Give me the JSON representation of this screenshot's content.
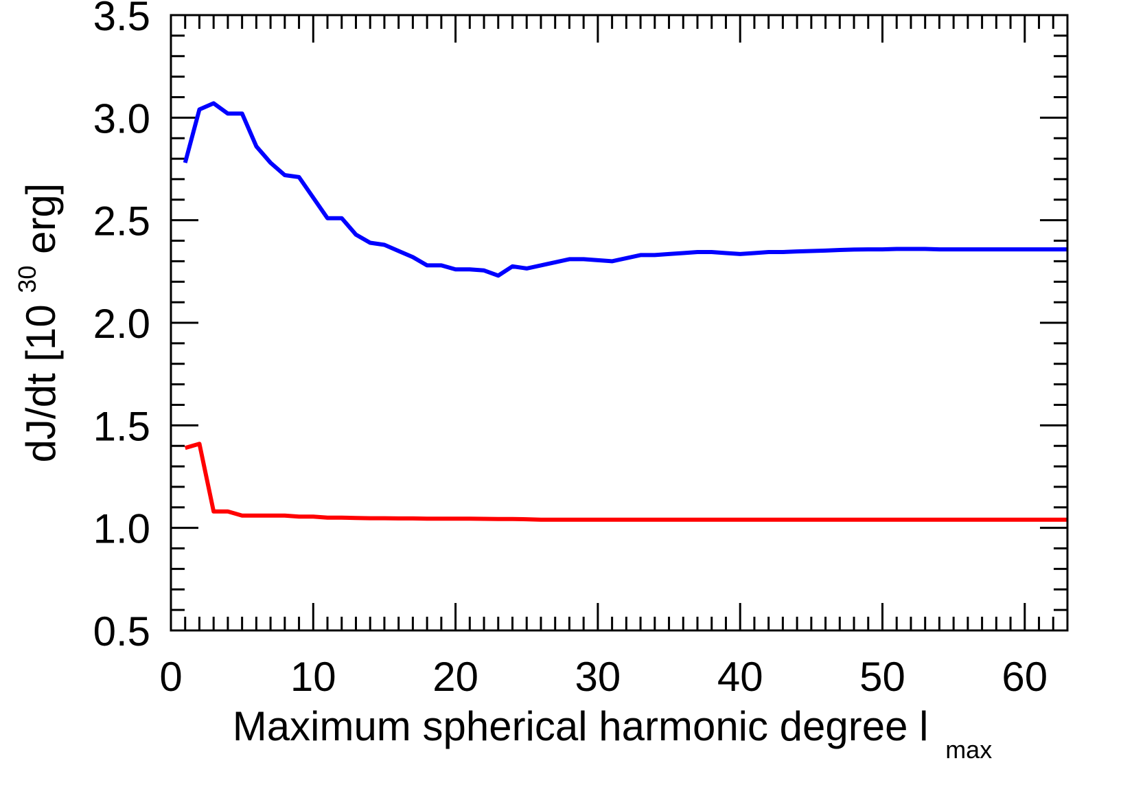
{
  "chart_data": {
    "type": "line",
    "xlabel": "Maximum spherical harmonic degree l",
    "xlabel_subscript": "max",
    "ylabel_prefix": "dJ/dt [10",
    "ylabel_superscript": "30",
    "ylabel_suffix": " erg]",
    "xlim": [
      0,
      63
    ],
    "ylim": [
      0.5,
      3.5
    ],
    "x_ticks": [
      0,
      10,
      20,
      30,
      40,
      50,
      60
    ],
    "x_tick_labels": [
      "0",
      "10",
      "20",
      "30",
      "40",
      "50",
      "60"
    ],
    "y_ticks": [
      0.5,
      1.0,
      1.5,
      2.0,
      2.5,
      3.0,
      3.5
    ],
    "y_tick_labels": [
      "0.5",
      "1.0",
      "1.5",
      "2.0",
      "2.5",
      "3.0",
      "3.5"
    ],
    "grid": false,
    "series": [
      {
        "color": "#0000ff",
        "x": [
          1,
          2,
          3,
          4,
          5,
          6,
          7,
          8,
          9,
          10,
          11,
          12,
          13,
          14,
          15,
          16,
          17,
          18,
          19,
          20,
          21,
          22,
          23,
          24,
          25,
          26,
          27,
          28,
          29,
          30,
          31,
          32,
          33,
          34,
          35,
          36,
          37,
          38,
          39,
          40,
          41,
          42,
          43,
          44,
          45,
          46,
          47,
          48,
          49,
          50,
          51,
          52,
          53,
          54,
          55,
          56,
          57,
          58,
          59,
          60,
          61,
          62,
          63
        ],
        "values": [
          2.78,
          3.04,
          3.07,
          3.02,
          3.02,
          2.86,
          2.78,
          2.72,
          2.71,
          2.61,
          2.51,
          2.51,
          2.43,
          2.39,
          2.38,
          2.35,
          2.32,
          2.28,
          2.28,
          2.26,
          2.26,
          2.255,
          2.23,
          2.275,
          2.265,
          2.28,
          2.295,
          2.31,
          2.31,
          2.305,
          2.3,
          2.315,
          2.33,
          2.33,
          2.335,
          2.34,
          2.345,
          2.345,
          2.34,
          2.335,
          2.34,
          2.345,
          2.345,
          2.348,
          2.35,
          2.352,
          2.355,
          2.357,
          2.358,
          2.358,
          2.36,
          2.36,
          2.36,
          2.358,
          2.358,
          2.358,
          2.358,
          2.358,
          2.358,
          2.358,
          2.358,
          2.358,
          2.358
        ]
      },
      {
        "color": "#ff0000",
        "x": [
          1,
          2,
          3,
          4,
          5,
          6,
          7,
          8,
          9,
          10,
          11,
          12,
          13,
          14,
          15,
          16,
          17,
          18,
          19,
          20,
          21,
          22,
          23,
          24,
          25,
          26,
          27,
          28,
          29,
          30,
          31,
          32,
          33,
          34,
          35,
          36,
          37,
          38,
          39,
          40,
          41,
          42,
          43,
          44,
          45,
          46,
          47,
          48,
          49,
          50,
          51,
          52,
          53,
          54,
          55,
          56,
          57,
          58,
          59,
          60,
          61,
          62,
          63
        ],
        "values": [
          1.39,
          1.41,
          1.08,
          1.08,
          1.06,
          1.06,
          1.06,
          1.06,
          1.055,
          1.055,
          1.05,
          1.05,
          1.048,
          1.047,
          1.047,
          1.046,
          1.046,
          1.045,
          1.045,
          1.045,
          1.045,
          1.044,
          1.043,
          1.043,
          1.042,
          1.04,
          1.04,
          1.04,
          1.04,
          1.04,
          1.04,
          1.04,
          1.04,
          1.04,
          1.04,
          1.04,
          1.04,
          1.04,
          1.04,
          1.04,
          1.04,
          1.04,
          1.04,
          1.04,
          1.04,
          1.04,
          1.04,
          1.04,
          1.04,
          1.04,
          1.04,
          1.04,
          1.04,
          1.04,
          1.04,
          1.04,
          1.04,
          1.04,
          1.04,
          1.04,
          1.04,
          1.04,
          1.04
        ]
      }
    ]
  }
}
